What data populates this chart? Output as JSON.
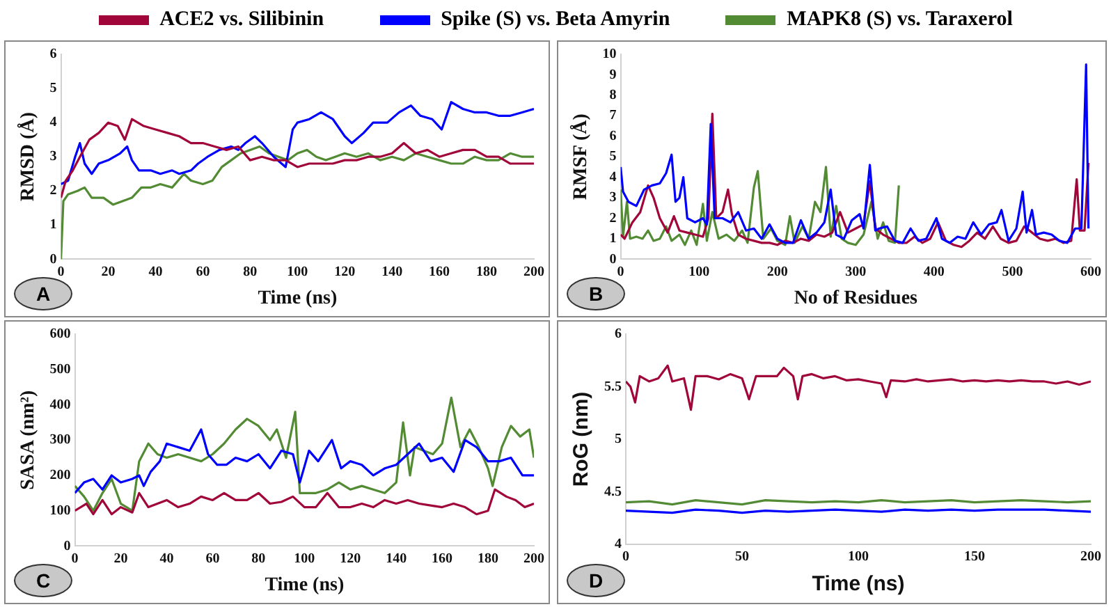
{
  "chart_data": [
    {
      "type": "line",
      "xlabel": "Time (ns)",
      "ylabel": "RMSD (Å)",
      "xlim": [
        0,
        200
      ],
      "xticks": [
        0,
        20,
        40,
        60,
        80,
        100,
        120,
        140,
        160,
        180,
        200
      ],
      "ylim": [
        0,
        6
      ],
      "yticks": [
        0,
        1,
        2,
        3,
        4,
        5,
        6
      ],
      "legend": "top",
      "annotations": [
        "A"
      ],
      "series": [
        {
          "name": "ACE2 vs. Silibinin",
          "color": "#a0063a",
          "x": [
            0,
            2,
            5,
            8,
            12,
            16,
            20,
            24,
            27,
            30,
            35,
            40,
            45,
            50,
            55,
            60,
            65,
            70,
            75,
            80,
            85,
            90,
            95,
            100,
            105,
            110,
            115,
            120,
            125,
            130,
            135,
            140,
            145,
            150,
            155,
            160,
            165,
            170,
            175,
            180,
            185,
            190,
            195,
            200
          ],
          "values": [
            1.8,
            2.3,
            2.6,
            3.0,
            3.5,
            3.7,
            4.0,
            3.9,
            3.5,
            4.1,
            3.9,
            3.8,
            3.7,
            3.6,
            3.4,
            3.4,
            3.3,
            3.2,
            3.3,
            2.9,
            3.0,
            2.9,
            2.9,
            2.7,
            2.8,
            2.8,
            2.8,
            2.9,
            2.9,
            3.0,
            3.0,
            3.1,
            3.4,
            3.1,
            3.2,
            3.0,
            3.1,
            3.2,
            3.2,
            3.0,
            3.0,
            2.8,
            2.8,
            2.8
          ]
        },
        {
          "name": "Spike (S) vs. Beta Amyrin",
          "color": "#0000ff",
          "x": [
            0,
            3,
            6,
            8,
            10,
            13,
            16,
            20,
            25,
            28,
            30,
            33,
            38,
            42,
            47,
            50,
            55,
            58,
            62,
            67,
            72,
            75,
            78,
            82,
            85,
            90,
            95,
            98,
            100,
            105,
            110,
            115,
            120,
            123,
            128,
            132,
            138,
            143,
            148,
            152,
            157,
            161,
            165,
            170,
            175,
            180,
            185,
            190,
            195,
            200
          ],
          "values": [
            2.2,
            2.3,
            3.0,
            3.4,
            2.8,
            2.5,
            2.8,
            2.9,
            3.1,
            3.3,
            2.9,
            2.6,
            2.6,
            2.5,
            2.6,
            2.5,
            2.6,
            2.8,
            3.0,
            3.2,
            3.3,
            3.2,
            3.4,
            3.6,
            3.4,
            3.0,
            2.7,
            3.8,
            4.0,
            4.1,
            4.3,
            4.1,
            3.6,
            3.4,
            3.7,
            4.0,
            4.0,
            4.3,
            4.5,
            4.2,
            4.1,
            3.8,
            4.6,
            4.4,
            4.3,
            4.3,
            4.2,
            4.2,
            4.3,
            4.4
          ]
        },
        {
          "name": "MAPK8 (S) vs. Taraxerol",
          "color": "#538b34",
          "x": [
            0,
            1,
            3,
            7,
            10,
            13,
            18,
            22,
            26,
            30,
            34,
            38,
            42,
            47,
            52,
            55,
            60,
            64,
            68,
            72,
            76,
            80,
            84,
            88,
            92,
            96,
            100,
            104,
            108,
            112,
            116,
            120,
            125,
            130,
            135,
            140,
            145,
            150,
            155,
            160,
            165,
            170,
            175,
            180,
            185,
            190,
            195,
            200
          ],
          "values": [
            0,
            1.7,
            1.9,
            2.0,
            2.1,
            1.8,
            1.8,
            1.6,
            1.7,
            1.8,
            2.1,
            2.1,
            2.2,
            2.1,
            2.5,
            2.3,
            2.2,
            2.3,
            2.7,
            2.9,
            3.1,
            3.2,
            3.3,
            3.1,
            3.0,
            2.9,
            3.1,
            3.2,
            3.0,
            2.9,
            3.0,
            3.1,
            3.0,
            3.1,
            2.9,
            3.0,
            2.9,
            3.1,
            3.0,
            2.9,
            2.8,
            2.8,
            3.0,
            2.9,
            2.9,
            3.1,
            3.0,
            3.0
          ]
        }
      ]
    },
    {
      "type": "line",
      "xlabel": "No of Residues",
      "ylabel": "RMSF (Å)",
      "xlim": [
        0,
        600
      ],
      "xticks": [
        0,
        100,
        200,
        300,
        400,
        500,
        600
      ],
      "ylim": [
        0,
        10
      ],
      "yticks": [
        0,
        1,
        2,
        3,
        4,
        5,
        6,
        7,
        8,
        9,
        10
      ],
      "annotations": [
        "B"
      ],
      "series": [
        {
          "color": "#0000ff",
          "x": [
            0,
            3,
            10,
            20,
            30,
            40,
            50,
            58,
            65,
            70,
            75,
            80,
            85,
            95,
            105,
            110,
            115,
            120,
            130,
            140,
            150,
            160,
            170,
            180,
            190,
            200,
            210,
            220,
            230,
            240,
            250,
            260,
            268,
            275,
            285,
            295,
            305,
            310,
            318,
            325,
            330,
            340,
            350,
            360,
            370,
            380,
            390,
            403,
            410,
            420,
            430,
            440,
            450,
            460,
            470,
            480,
            486,
            495,
            505,
            513,
            518,
            525,
            530,
            540,
            550,
            560,
            570,
            580,
            588,
            594,
            597
          ],
          "values": [
            4.5,
            3.3,
            2.8,
            2.6,
            3.4,
            3.6,
            3.7,
            4.2,
            5.1,
            2.8,
            3.0,
            4.0,
            2.0,
            1.8,
            2.0,
            1.7,
            6.6,
            2.0,
            2.0,
            1.8,
            2.3,
            1.4,
            1.5,
            1.0,
            1.7,
            1.0,
            0.8,
            0.8,
            1.9,
            1.0,
            1.3,
            1.8,
            3.4,
            1.2,
            1.0,
            1.9,
            2.2,
            1.5,
            4.6,
            1.4,
            1.5,
            1.6,
            0.9,
            0.8,
            1.5,
            0.9,
            1.0,
            2.0,
            1.0,
            0.8,
            1.1,
            1.0,
            1.8,
            1.2,
            1.7,
            1.8,
            2.4,
            0.9,
            1.5,
            3.3,
            1.3,
            2.4,
            1.2,
            1.3,
            1.2,
            0.9,
            0.8,
            1.5,
            1.5,
            9.5,
            1.5
          ]
        },
        {
          "color": "#a0063a",
          "x": [
            0,
            5,
            15,
            25,
            35,
            42,
            50,
            60,
            68,
            75,
            85,
            95,
            105,
            112,
            117,
            122,
            130,
            137,
            142,
            150,
            160,
            170,
            180,
            190,
            200,
            210,
            220,
            230,
            240,
            250,
            260,
            270,
            280,
            290,
            300,
            310,
            318,
            325,
            335,
            345,
            355,
            365,
            375,
            385,
            395,
            405,
            415,
            425,
            435,
            445,
            455,
            465,
            475,
            485,
            495,
            505,
            515,
            525,
            535,
            545,
            555,
            565,
            575,
            582,
            586,
            592,
            597
          ],
          "values": [
            1.2,
            1.0,
            1.8,
            2.3,
            3.6,
            3.0,
            2.0,
            1.3,
            2.1,
            1.4,
            1.3,
            1.2,
            1.1,
            2.0,
            7.1,
            2.0,
            2.3,
            3.4,
            2.2,
            1.2,
            1.0,
            0.9,
            0.8,
            0.8,
            0.7,
            0.9,
            0.8,
            1.0,
            0.9,
            1.2,
            1.1,
            1.3,
            2.3,
            1.3,
            1.5,
            1.7,
            3.8,
            1.5,
            1.2,
            1.0,
            0.8,
            0.8,
            1.1,
            0.8,
            1.0,
            1.8,
            0.9,
            0.7,
            0.6,
            0.9,
            1.3,
            1.0,
            1.6,
            1.0,
            0.8,
            0.9,
            1.6,
            1.3,
            1.0,
            0.9,
            1.0,
            0.8,
            0.9,
            3.9,
            1.4,
            1.4,
            4.7
          ]
        },
        {
          "color": "#538b34",
          "x": [
            0,
            3,
            8,
            12,
            20,
            28,
            35,
            42,
            50,
            58,
            65,
            75,
            82,
            90,
            97,
            105,
            110,
            117,
            125,
            135,
            145,
            155,
            162,
            170,
            175,
            182,
            192,
            200,
            210,
            216,
            222,
            232,
            240,
            248,
            255,
            262,
            268,
            275,
            282,
            290,
            300,
            310,
            320,
            328,
            335,
            342,
            350,
            355
          ],
          "values": [
            3.4,
            1.1,
            2.8,
            1.0,
            1.1,
            1.0,
            1.4,
            0.9,
            1.0,
            1.6,
            0.9,
            1.2,
            0.7,
            1.4,
            0.7,
            2.7,
            0.9,
            2.3,
            1.0,
            1.2,
            0.9,
            1.4,
            0.8,
            3.5,
            4.3,
            1.0,
            1.5,
            0.9,
            0.7,
            2.1,
            0.8,
            1.6,
            1.0,
            2.8,
            2.3,
            4.5,
            1.1,
            2.6,
            1.0,
            0.8,
            0.7,
            1.2,
            2.8,
            1.0,
            1.8,
            0.9,
            0.8,
            3.6
          ]
        }
      ]
    },
    {
      "type": "line",
      "xlabel": "Time (ns)",
      "ylabel": "SASA (nm²)",
      "xlim": [
        0,
        200
      ],
      "xticks": [
        0,
        20,
        40,
        60,
        80,
        100,
        120,
        140,
        160,
        180,
        200
      ],
      "ylim": [
        0,
        600
      ],
      "yticks": [
        0,
        100,
        200,
        300,
        400,
        500,
        600
      ],
      "annotations": [
        "C"
      ],
      "series": [
        {
          "color": "#0000ff",
          "x": [
            0,
            4,
            8,
            12,
            16,
            20,
            25,
            28,
            30,
            33,
            37,
            40,
            45,
            50,
            55,
            58,
            62,
            66,
            70,
            75,
            80,
            85,
            90,
            95,
            98,
            102,
            106,
            112,
            116,
            120,
            125,
            130,
            135,
            140,
            145,
            150,
            155,
            160,
            165,
            170,
            175,
            180,
            185,
            190,
            195,
            200
          ],
          "values": [
            150,
            180,
            190,
            160,
            200,
            180,
            190,
            200,
            170,
            210,
            240,
            290,
            280,
            270,
            330,
            260,
            230,
            230,
            250,
            240,
            260,
            220,
            270,
            260,
            180,
            270,
            240,
            300,
            220,
            240,
            230,
            200,
            220,
            230,
            260,
            290,
            240,
            250,
            210,
            300,
            280,
            240,
            240,
            250,
            200,
            200
          ]
        },
        {
          "color": "#a0063a",
          "x": [
            0,
            5,
            8,
            12,
            16,
            20,
            25,
            28,
            32,
            36,
            40,
            45,
            50,
            55,
            60,
            65,
            70,
            75,
            80,
            85,
            90,
            95,
            100,
            105,
            110,
            115,
            120,
            125,
            130,
            135,
            140,
            145,
            150,
            155,
            160,
            165,
            170,
            175,
            180,
            183,
            188,
            192,
            196,
            200
          ],
          "values": [
            100,
            120,
            90,
            130,
            90,
            110,
            95,
            150,
            110,
            120,
            130,
            110,
            120,
            140,
            130,
            150,
            130,
            130,
            150,
            120,
            125,
            140,
            110,
            110,
            150,
            110,
            110,
            120,
            110,
            130,
            120,
            130,
            120,
            115,
            110,
            120,
            110,
            90,
            100,
            160,
            140,
            130,
            110,
            120
          ]
        },
        {
          "color": "#538b34",
          "x": [
            0,
            4,
            8,
            12,
            16,
            20,
            25,
            28,
            32,
            36,
            40,
            45,
            50,
            55,
            60,
            65,
            70,
            75,
            80,
            85,
            88,
            92,
            96,
            98,
            100,
            105,
            110,
            115,
            120,
            125,
            130,
            135,
            140,
            143,
            146,
            148,
            152,
            156,
            160,
            164,
            168,
            172,
            176,
            180,
            182,
            186,
            190,
            194,
            198,
            200
          ],
          "values": [
            170,
            140,
            100,
            150,
            190,
            120,
            100,
            240,
            290,
            260,
            250,
            260,
            250,
            240,
            260,
            290,
            330,
            360,
            340,
            300,
            330,
            250,
            380,
            150,
            150,
            150,
            160,
            180,
            160,
            170,
            160,
            150,
            180,
            350,
            200,
            280,
            270,
            260,
            290,
            420,
            280,
            330,
            280,
            220,
            170,
            280,
            340,
            310,
            330,
            250
          ]
        }
      ]
    },
    {
      "type": "line",
      "xlabel": "Time (ns)",
      "ylabel": "RoG (nm)",
      "xlim": [
        0,
        200
      ],
      "xticks": [
        0,
        50,
        100,
        150,
        200
      ],
      "ylim": [
        4,
        6
      ],
      "yticks": [
        4,
        4.5,
        5,
        5.5,
        6
      ],
      "annotations": [
        "D"
      ],
      "series": [
        {
          "color": "#a0063a",
          "x": [
            0,
            2,
            4,
            6,
            10,
            14,
            18,
            20,
            25,
            28,
            30,
            35,
            40,
            45,
            50,
            53,
            56,
            60,
            65,
            68,
            72,
            74,
            76,
            80,
            85,
            90,
            95,
            100,
            105,
            110,
            112,
            114,
            120,
            125,
            130,
            135,
            140,
            145,
            150,
            155,
            160,
            165,
            170,
            175,
            180,
            185,
            190,
            195,
            200
          ],
          "values": [
            5.55,
            5.5,
            5.35,
            5.6,
            5.55,
            5.58,
            5.7,
            5.55,
            5.58,
            5.28,
            5.6,
            5.6,
            5.57,
            5.62,
            5.58,
            5.38,
            5.6,
            5.6,
            5.6,
            5.68,
            5.6,
            5.38,
            5.6,
            5.62,
            5.58,
            5.6,
            5.56,
            5.57,
            5.55,
            5.53,
            5.4,
            5.56,
            5.55,
            5.57,
            5.55,
            5.56,
            5.57,
            5.55,
            5.56,
            5.55,
            5.56,
            5.55,
            5.56,
            5.55,
            5.55,
            5.53,
            5.55,
            5.52,
            5.55
          ]
        },
        {
          "color": "#538b34",
          "x": [
            0,
            10,
            20,
            30,
            40,
            50,
            60,
            70,
            80,
            90,
            100,
            110,
            120,
            130,
            140,
            150,
            160,
            170,
            180,
            190,
            200
          ],
          "values": [
            4.4,
            4.41,
            4.38,
            4.42,
            4.4,
            4.38,
            4.42,
            4.41,
            4.4,
            4.41,
            4.4,
            4.42,
            4.4,
            4.41,
            4.42,
            4.4,
            4.41,
            4.42,
            4.41,
            4.4,
            4.41
          ]
        },
        {
          "color": "#0000ff",
          "x": [
            0,
            10,
            20,
            30,
            40,
            50,
            60,
            70,
            80,
            90,
            100,
            110,
            120,
            130,
            140,
            150,
            160,
            170,
            180,
            190,
            200
          ],
          "values": [
            4.32,
            4.31,
            4.3,
            4.33,
            4.32,
            4.3,
            4.32,
            4.31,
            4.32,
            4.33,
            4.32,
            4.31,
            4.33,
            4.32,
            4.33,
            4.32,
            4.33,
            4.33,
            4.33,
            4.32,
            4.31
          ]
        }
      ]
    }
  ]
}
